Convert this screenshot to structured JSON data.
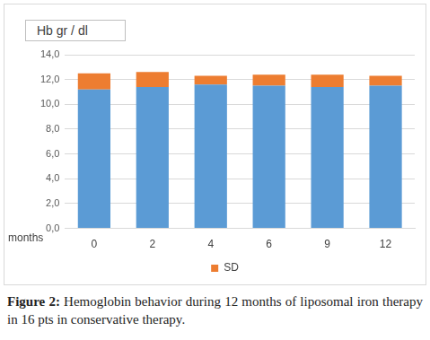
{
  "chart_data": {
    "type": "bar",
    "title": "Hb gr / dl",
    "x_label": "months",
    "caption_label": "Figure 2:",
    "caption": "Hemoglobin behavior during 12 months of liposomal iron therapy in 16 pts in conservative therapy.",
    "categories": [
      "0",
      "2",
      "4",
      "6",
      "9",
      "12"
    ],
    "series": [
      {
        "color": "#5b9bd5",
        "values": [
          11.2,
          11.4,
          11.6,
          11.5,
          11.4,
          11.5
        ]
      },
      {
        "name": "SD",
        "color": "#ed7d31",
        "values": [
          1.3,
          1.2,
          0.7,
          0.9,
          1.0,
          0.8
        ]
      }
    ],
    "stacked": true,
    "ylim": [
      0,
      14
    ],
    "yticks": [
      {
        "value": 0,
        "label": "0,0"
      },
      {
        "value": 2,
        "label": "2,0"
      },
      {
        "value": 4,
        "label": "4,0"
      },
      {
        "value": 6,
        "label": "6,0"
      },
      {
        "value": 8,
        "label": "8,0"
      },
      {
        "value": 10,
        "label": "10,0"
      },
      {
        "value": 12,
        "label": "12,0"
      },
      {
        "value": 14,
        "label": "14,0"
      }
    ],
    "grid": true,
    "legend": "bottom",
    "data_labels": false
  }
}
